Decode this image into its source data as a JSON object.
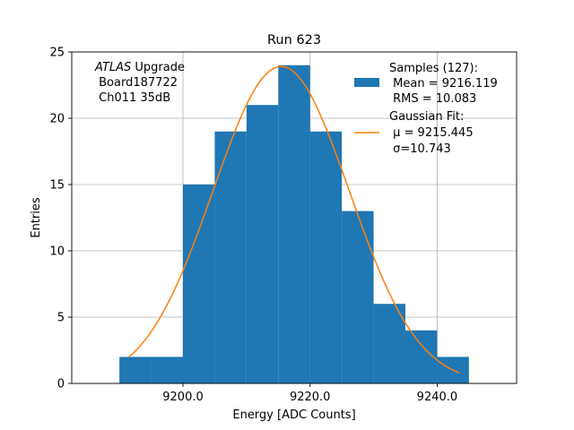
{
  "chart_data": {
    "type": "bar",
    "title": "Run 623",
    "xlabel": "Energy [ADC Counts]",
    "ylabel": "Entries",
    "xlim": [
      9182.5,
      9252.5
    ],
    "ylim": [
      0,
      25
    ],
    "xticks": [
      9200,
      9220,
      9240
    ],
    "xtick_labels": [
      "9200.0",
      "9220.0",
      "9240.0"
    ],
    "yticks": [
      0,
      5,
      10,
      15,
      20,
      25
    ],
    "ytick_labels": [
      "0",
      "5",
      "10",
      "15",
      "20",
      "25"
    ],
    "grid": true,
    "histogram": {
      "name": "Samples",
      "color": "#1f77b4",
      "bins": [
        {
          "x0": 9190,
          "x1": 9195,
          "count": 2
        },
        {
          "x0": 9195,
          "x1": 9200,
          "count": 2
        },
        {
          "x0": 9200,
          "x1": 9205,
          "count": 15
        },
        {
          "x0": 9205,
          "x1": 9210,
          "count": 19
        },
        {
          "x0": 9210,
          "x1": 9215,
          "count": 21
        },
        {
          "x0": 9215,
          "x1": 9220,
          "count": 24
        },
        {
          "x0": 9220,
          "x1": 9225,
          "count": 19
        },
        {
          "x0": 9225,
          "x1": 9230,
          "count": 13
        },
        {
          "x0": 9230,
          "x1": 9235,
          "count": 6
        },
        {
          "x0": 9235,
          "x1": 9240,
          "count": 4
        },
        {
          "x0": 9240,
          "x1": 9245,
          "count": 2
        }
      ]
    },
    "fit": {
      "name": "Gaussian Fit",
      "color": "#ff7f0e",
      "amplitude": 23.9,
      "mu": 9215.445,
      "sigma": 10.743,
      "x_range": [
        9191.5,
        9243.5
      ]
    },
    "annotation": {
      "italic": "ATLAS",
      "line1_rest": " Upgrade",
      "line2": " Board187722",
      "line3": " Ch011 35dB"
    },
    "legend": {
      "position": "top-right",
      "samples_line1": "Samples (127):",
      "samples_line2": " Mean = 9216.119",
      "samples_line3": " RMS = 10.083",
      "fit_line1": "Gaussian Fit:",
      "fit_line2": " μ = 9215.445",
      "fit_line3": " σ=10.743"
    }
  }
}
